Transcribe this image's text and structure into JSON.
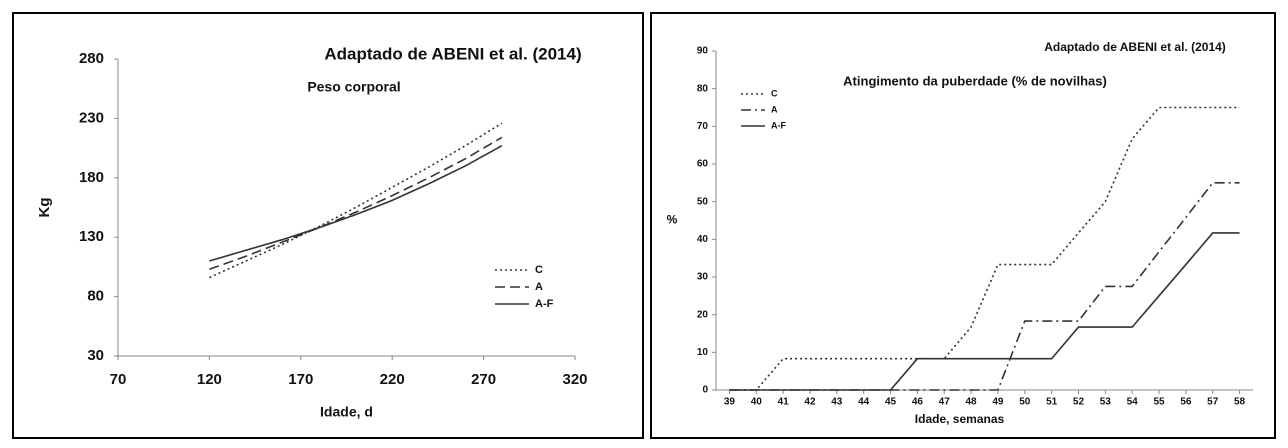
{
  "chart_data": [
    {
      "type": "line",
      "title": "Peso corporal",
      "annotation": "Adaptado de ABENI et al. (2014)",
      "x_label": "Idade, d",
      "y_label": "Kg",
      "x": [
        120,
        140,
        160,
        180,
        200,
        220,
        240,
        260,
        280
      ],
      "series": [
        {
          "name": "C",
          "color": "#333333",
          "style": "dotted",
          "values": [
            96,
            110,
            124,
            139,
            155,
            172,
            189,
            207,
            226
          ]
        },
        {
          "name": "A",
          "color": "#333333",
          "style": "dashed",
          "values": [
            103,
            114,
            126,
            138,
            151,
            165,
            180,
            196,
            214
          ]
        },
        {
          "name": "A-F",
          "color": "#333333",
          "style": "solid",
          "values": [
            110,
            119,
            128,
            138,
            149,
            161,
            175,
            190,
            207
          ]
        }
      ],
      "xlim": [
        70,
        320
      ],
      "xticks": [
        70,
        120,
        170,
        220,
        270,
        320
      ],
      "ylim": [
        30,
        280
      ],
      "yticks": [
        30,
        80,
        130,
        180,
        230,
        280
      ],
      "legend": "lower right"
    },
    {
      "type": "line",
      "title": "Atingimento da puberdade (% de novilhas)",
      "annotation": "Adaptado de ABENI et al. (2014)",
      "x_label": "Idade, semanas",
      "y_label": "%",
      "x": [
        39,
        40,
        41,
        42,
        43,
        44,
        45,
        46,
        47,
        48,
        49,
        50,
        51,
        52,
        53,
        54,
        55,
        56,
        57,
        58
      ],
      "series": [
        {
          "name": "C",
          "color": "#333333",
          "style": "dotted",
          "values": [
            0,
            0,
            8.3,
            8.3,
            8.3,
            8.3,
            8.3,
            8.3,
            8.3,
            16.7,
            33.3,
            33.3,
            33.3,
            41.7,
            50,
            66.7,
            75,
            75,
            75,
            75
          ]
        },
        {
          "name": "A",
          "color": "#333333",
          "style": "dashdot",
          "values": [
            0,
            0,
            0,
            0,
            0,
            0,
            0,
            0,
            0,
            0,
            0,
            18.3,
            18.3,
            18.3,
            27.5,
            27.5,
            36.7,
            45.8,
            55,
            55
          ]
        },
        {
          "name": "A-F",
          "color": "#333333",
          "style": "solid",
          "values": [
            0,
            0,
            0,
            0,
            0,
            0,
            0,
            8.3,
            8.3,
            8.3,
            8.3,
            8.3,
            8.3,
            16.7,
            16.7,
            16.7,
            25,
            33.3,
            41.7,
            41.7
          ]
        }
      ],
      "xlim": [
        38.5,
        58.5
      ],
      "xticks": [
        39,
        40,
        41,
        42,
        43,
        44,
        45,
        46,
        47,
        48,
        49,
        50,
        51,
        52,
        53,
        54,
        55,
        56,
        57,
        58
      ],
      "ylim": [
        0,
        90
      ],
      "yticks": [
        0,
        10,
        20,
        30,
        40,
        50,
        60,
        70,
        80,
        90
      ],
      "legend": "upper left"
    }
  ]
}
